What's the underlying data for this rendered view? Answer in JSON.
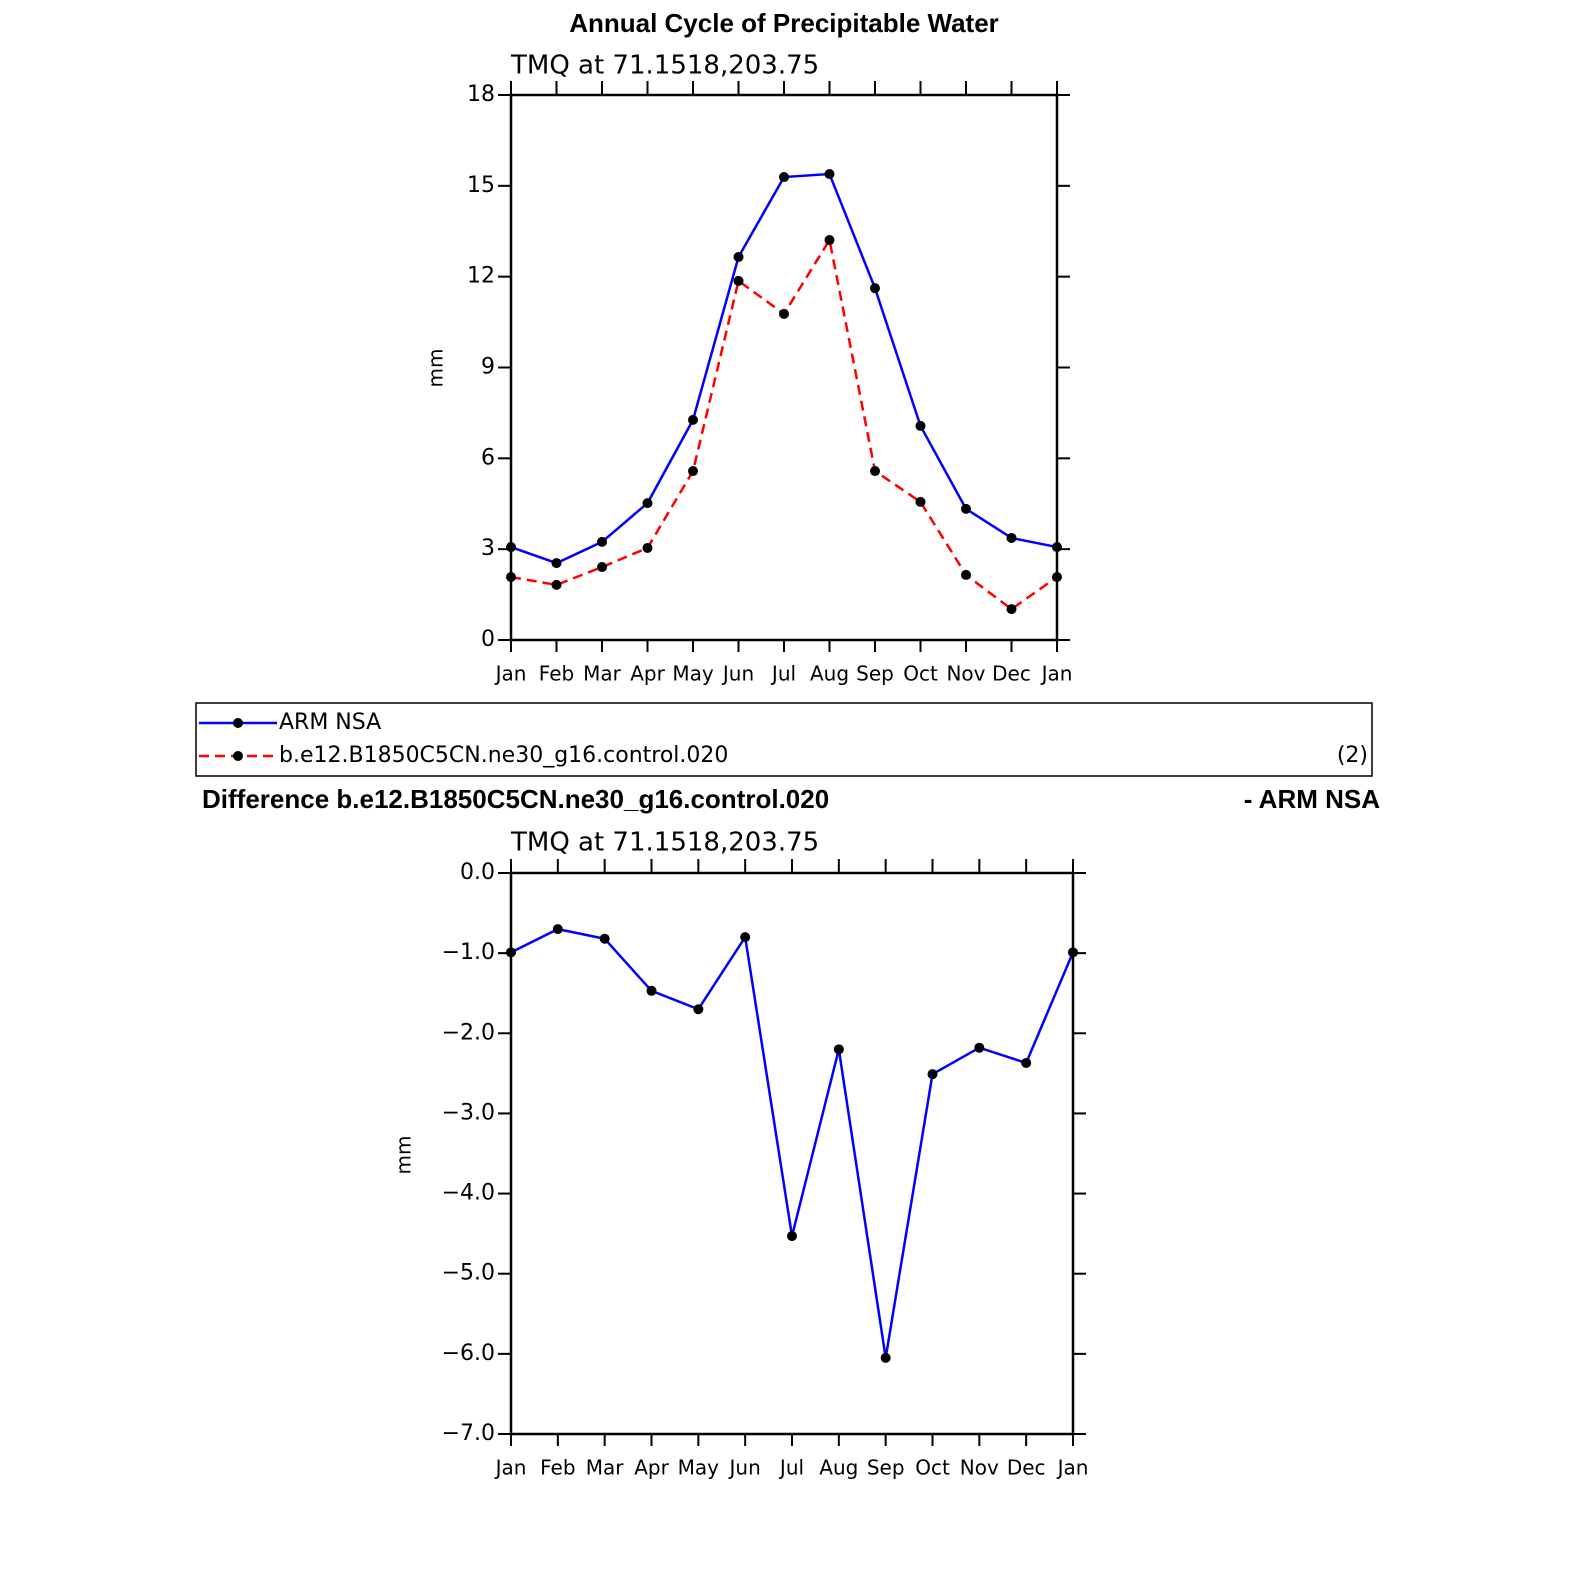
{
  "chart_data": [
    {
      "type": "line",
      "title": "Annual Cycle of Precipitable Water",
      "subtitle": "TMQ  at  71.1518,203.75",
      "y_label": "mm",
      "categories": [
        "Jan",
        "Feb",
        "Mar",
        "Apr",
        "May",
        "Jun",
        "Jul",
        "Aug",
        "Sep",
        "Oct",
        "Nov",
        "Dec",
        "Jan"
      ],
      "series": [
        {
          "name": "ARM  NSA",
          "color": "#0000ff",
          "line_style": "solid",
          "values": [
            3.07,
            2.54,
            3.24,
            4.52,
            7.27,
            12.65,
            15.29,
            15.39,
            11.62,
            7.07,
            4.33,
            3.37,
            3.07
          ]
        },
        {
          "name": "b.e12.B1850C5CN.ne30_g16.control.020",
          "color": "#ff0000",
          "line_style": "dashed",
          "values": [
            2.08,
            1.82,
            2.41,
            3.04,
            5.58,
            11.86,
            10.77,
            13.21,
            5.58,
            4.56,
            2.15,
            1.02,
            2.08
          ]
        }
      ],
      "legend_annotation": "(2)",
      "ylim": [
        0,
        18
      ],
      "yticks": [
        0,
        3,
        6,
        9,
        12,
        15,
        18
      ],
      "grid": false
    },
    {
      "type": "line",
      "title": "Difference b.e12.B1850C5CN.ne30_g16.control.020",
      "title_suffix": "- ARM NSA",
      "subtitle": "TMQ  at  71.1518,203.75",
      "y_label": "mm",
      "categories": [
        "Jan",
        "Feb",
        "Mar",
        "Apr",
        "May",
        "Jun",
        "Jul",
        "Aug",
        "Sep",
        "Oct",
        "Nov",
        "Dec",
        "Jan"
      ],
      "color": "#0000ff",
      "values": [
        -0.99,
        -0.7,
        -0.82,
        -1.47,
        -1.7,
        -0.8,
        -4.53,
        -2.2,
        -6.05,
        -2.51,
        -2.18,
        -2.37,
        -0.99
      ],
      "ylim": [
        -7,
        0
      ],
      "yticks": [
        {
          "value": 0,
          "label": "0.0"
        },
        {
          "value": -1,
          "label": "−1.0"
        },
        {
          "value": -2,
          "label": "−2.0"
        },
        {
          "value": -3,
          "label": "−3.0"
        },
        {
          "value": -4,
          "label": "−4.0"
        },
        {
          "value": -5,
          "label": "−5.0"
        },
        {
          "value": -6,
          "label": "−6.0"
        },
        {
          "value": -7,
          "label": "−7.0"
        }
      ],
      "grid": false
    }
  ]
}
